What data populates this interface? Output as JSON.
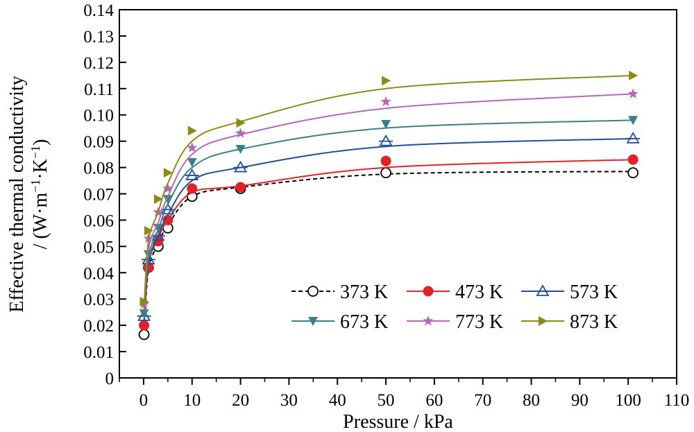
{
  "chart_data": {
    "type": "scatter",
    "xlabel": "Pressure / kPa",
    "ylabel_line1": "Effective thermal conductivity",
    "ylabel_line2_prefix": "/ (W·m",
    "ylabel_sup1": "−1",
    "ylabel_mid": "·K",
    "ylabel_sup2": "−1",
    "ylabel_suffix": ")",
    "xlim": [
      -5,
      110
    ],
    "ylim": [
      0,
      0.14
    ],
    "xticks": [
      0,
      10,
      20,
      30,
      40,
      50,
      60,
      70,
      80,
      90,
      100,
      110
    ],
    "yticks": [
      0,
      0.01,
      0.02,
      0.03,
      0.04,
      0.05,
      0.06,
      0.07,
      0.08,
      0.09,
      0.1,
      0.11,
      0.12,
      0.13,
      0.14
    ],
    "ytick_labels": [
      "0",
      "0.01",
      "0.02",
      "0.03",
      "0.04",
      "0.05",
      "0.06",
      "0.07",
      "0.08",
      "0.09",
      "0.10",
      "0.11",
      "0.12",
      "0.13",
      "0.14"
    ],
    "legend_position": "lower-right",
    "grid": false,
    "series": [
      {
        "name": "373 K",
        "color": "#000000",
        "marker": "open-circle",
        "line_style": "dashed",
        "x": [
          0.1,
          1,
          3,
          5,
          10,
          20,
          50,
          101
        ],
        "y": [
          0.0165,
          0.042,
          0.05,
          0.057,
          0.069,
          0.072,
          0.078,
          0.078
        ],
        "fit_y": [
          0.018,
          0.041,
          0.051,
          0.058,
          0.069,
          0.0725,
          0.0775,
          0.0785
        ]
      },
      {
        "name": "473 K",
        "color": "#e32227",
        "marker": "filled-circle",
        "line_style": "solid",
        "x": [
          0.1,
          1,
          3,
          5,
          10,
          20,
          50,
          101
        ],
        "y": [
          0.02,
          0.042,
          0.052,
          0.06,
          0.072,
          0.0725,
          0.0825,
          0.083
        ],
        "fit_y": [
          0.02,
          0.043,
          0.053,
          0.06,
          0.0705,
          0.073,
          0.08,
          0.083
        ]
      },
      {
        "name": "573 K",
        "color": "#1f4e9a",
        "marker": "open-triangle-up",
        "line_style": "solid",
        "x": [
          0.1,
          1,
          3,
          5,
          10,
          20,
          50,
          101
        ],
        "y": [
          0.0235,
          0.045,
          0.054,
          0.064,
          0.077,
          0.08,
          0.09,
          0.091
        ],
        "fit_y": [
          0.022,
          0.044,
          0.054,
          0.062,
          0.075,
          0.08,
          0.088,
          0.091
        ]
      },
      {
        "name": "673 K",
        "color": "#3a8088",
        "marker": "filled-triangle-down",
        "line_style": "solid",
        "x": [
          0.1,
          1,
          3,
          5,
          10,
          20,
          50,
          101
        ],
        "y": [
          0.0245,
          0.047,
          0.057,
          0.068,
          0.082,
          0.087,
          0.0965,
          0.098
        ],
        "fit_y": [
          0.024,
          0.046,
          0.056,
          0.066,
          0.08,
          0.087,
          0.095,
          0.098
        ]
      },
      {
        "name": "773 K",
        "color": "#b468b6",
        "marker": "star",
        "line_style": "solid",
        "x": [
          0.1,
          1,
          3,
          5,
          10,
          20,
          50,
          101
        ],
        "y": [
          0.028,
          0.053,
          0.063,
          0.072,
          0.0875,
          0.093,
          0.105,
          0.108
        ],
        "fit_y": [
          0.026,
          0.049,
          0.059,
          0.069,
          0.085,
          0.0925,
          0.1025,
          0.108
        ]
      },
      {
        "name": "873 K",
        "color": "#8b8b14",
        "marker": "filled-triangle-right",
        "line_style": "solid",
        "x": [
          0.1,
          1,
          3,
          5,
          10,
          20,
          50,
          101
        ],
        "y": [
          0.029,
          0.056,
          0.068,
          0.078,
          0.094,
          0.097,
          0.113,
          0.115
        ],
        "fit_y": [
          0.027,
          0.052,
          0.063,
          0.074,
          0.09,
          0.0975,
          0.11,
          0.115
        ]
      }
    ]
  }
}
